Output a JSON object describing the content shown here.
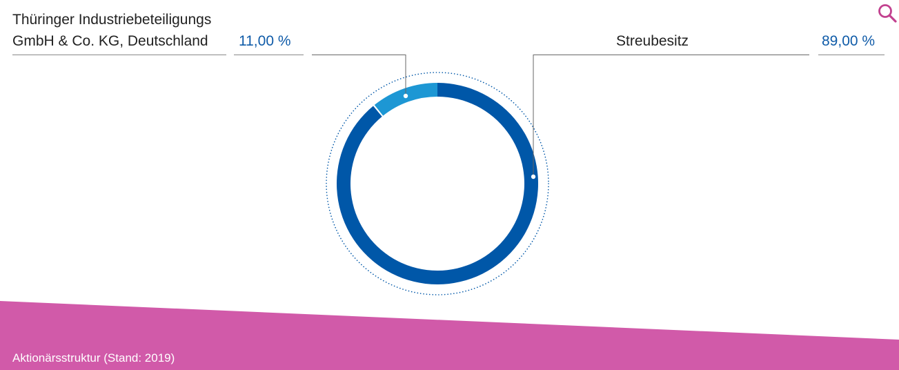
{
  "colors": {
    "primary_slice": "#0057a8",
    "secondary_slice": "#1d97d4",
    "value_text": "#0f5ba8",
    "caption_band": "#d15aa9",
    "search_icon": "#c2418f",
    "leader_line": "#666666"
  },
  "chart_data": {
    "type": "pie",
    "style": "donut",
    "title": "",
    "slices": [
      {
        "label_line1": "Thüringer Industriebeteiligungs",
        "label_line2": "GmbH & Co. KG, Deutschland",
        "value_text": "11,00 %",
        "value": 11.0
      },
      {
        "label_line1": "Streubesitz",
        "label_line2": "",
        "value_text": "89,00 %",
        "value": 89.0
      }
    ]
  },
  "caption": "Aktionärsstruktur (Stand: 2019)",
  "icons": {
    "zoom": "search-icon"
  }
}
